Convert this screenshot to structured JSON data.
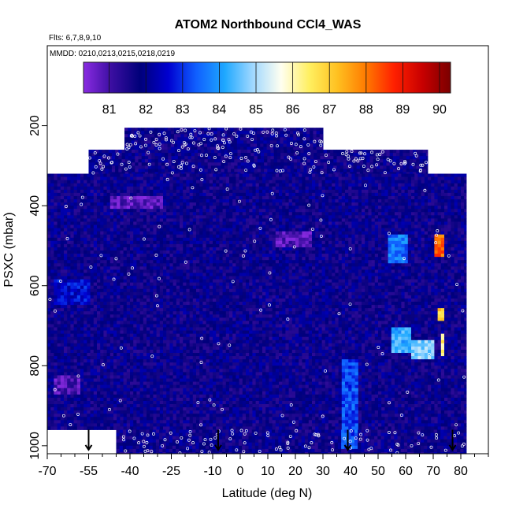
{
  "chart_data": {
    "type": "heatmap",
    "title": "ATOM2 Northbound CCl4_WAS",
    "flights_label": "Flts: 6,7,8,9,10",
    "dates_label": "MMDD: 0210,0213,0215,0218,0219",
    "xlabel": "Latitude (deg N)",
    "ylabel": "PSXC (mbar)",
    "xlim": [
      -70,
      90
    ],
    "ylim": [
      1020,
      0
    ],
    "x_ticks": [
      -70,
      -55,
      -40,
      -25,
      -10,
      0,
      10,
      20,
      30,
      40,
      50,
      60,
      70,
      80
    ],
    "x_tick_labels": [
      "-70",
      "-55",
      "-40",
      "-25",
      "-10",
      "0",
      "10",
      "20",
      "30",
      "40",
      "50",
      "60",
      "70",
      "80"
    ],
    "y_ticks": [
      200,
      400,
      600,
      800,
      1000
    ],
    "y_tick_labels": [
      "200",
      "400",
      "600",
      "800",
      "1000"
    ],
    "colorbar": {
      "min": 80.3,
      "max": 90.3,
      "ticks": [
        81,
        82,
        83,
        84,
        85,
        86,
        87,
        88,
        89,
        90
      ],
      "tick_labels": [
        "81",
        "82",
        "83",
        "84",
        "85",
        "86",
        "87",
        "88",
        "89",
        "90"
      ],
      "colors": [
        "#8a2be2",
        "#3a0ea0",
        "#00007a",
        "#0000d0",
        "#1060ff",
        "#1ea8ff",
        "#a0d8ff",
        "#fffff0",
        "#ffef60",
        "#ffc020",
        "#ff7a00",
        "#ff2000",
        "#c80000",
        "#7a0000"
      ]
    },
    "background_value": 81.8,
    "value_bands": [
      {
        "lat_min": 53,
        "lat_max": 60,
        "p_min": 470,
        "p_max": 540,
        "value": 83.6
      },
      {
        "lat_min": 54,
        "lat_max": 62,
        "p_min": 700,
        "p_max": 760,
        "value": 84.2
      },
      {
        "lat_min": 62,
        "lat_max": 70,
        "p_min": 730,
        "p_max": 780,
        "value": 84.8
      },
      {
        "lat_min": 70,
        "lat_max": 74,
        "p_min": 470,
        "p_max": 520,
        "value": 88.2
      },
      {
        "lat_min": 71,
        "lat_max": 74,
        "p_min": 650,
        "p_max": 680,
        "value": 87.0
      },
      {
        "lat_min": 72,
        "lat_max": 74,
        "p_min": 720,
        "p_max": 770,
        "value": 86.4
      },
      {
        "lat_min": 36,
        "lat_max": 42,
        "p_min": 780,
        "p_max": 1000,
        "value": 83.2
      },
      {
        "lat_min": -48,
        "lat_max": -28,
        "p_min": 370,
        "p_max": 400,
        "value": 80.8
      },
      {
        "lat_min": 12,
        "lat_max": 26,
        "p_min": 460,
        "p_max": 500,
        "value": 80.8
      },
      {
        "lat_min": -68,
        "lat_max": -55,
        "p_min": 580,
        "p_max": 640,
        "value": 82.6
      },
      {
        "lat_min": -68,
        "lat_max": -58,
        "p_min": 820,
        "p_max": 870,
        "value": 80.9
      }
    ],
    "profiles": [
      {
        "lat_start": -42,
        "lat_end": 30,
        "p_top": 205,
        "p_bottom": 260
      },
      {
        "lat_start": -55,
        "lat_end": 68,
        "p_top": 260,
        "p_bottom": 320
      },
      {
        "lat_start": -70,
        "lat_end": 82,
        "p_top": 320,
        "p_bottom": 960
      },
      {
        "lat_start": -45,
        "lat_end": 82,
        "p_top": 960,
        "p_bottom": 1020
      }
    ],
    "profile_markers_lat": [
      -55,
      -8,
      39,
      77
    ]
  }
}
